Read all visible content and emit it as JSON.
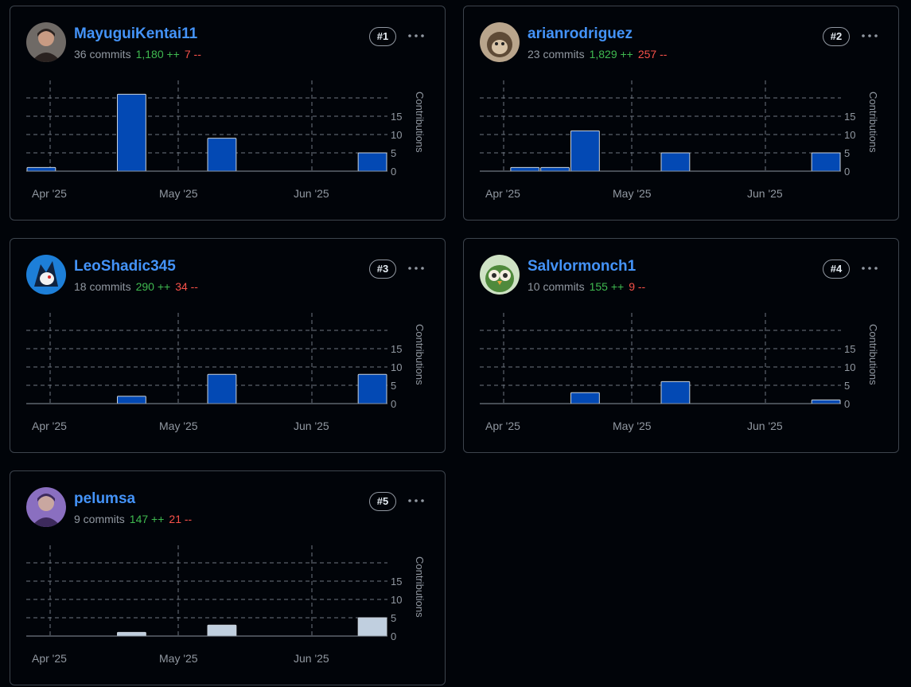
{
  "contributors": [
    {
      "username": "MayuguiKentai11",
      "commits": "36 commits",
      "additions": "1,180 ++",
      "deletions": "7 --",
      "rank": "#1",
      "avatar": {
        "bg": "#6f6a66",
        "fg": "#2a2220",
        "face": "#c89b83",
        "kind": "person"
      },
      "chart_data": {
        "type": "bar",
        "x_tick_labels": [
          "Apr '25",
          "May '25",
          "Jun '25"
        ],
        "y_tick_labels": [
          "0",
          "5",
          "10",
          "15"
        ],
        "ylabel": "Contributions",
        "ylim": [
          0,
          20
        ],
        "bar_color": "#0349b4",
        "values": [
          1,
          0,
          0,
          21,
          0,
          0,
          9,
          0,
          0,
          0,
          0,
          5
        ]
      }
    },
    {
      "username": "arianrodriguez",
      "commits": "23 commits",
      "additions": "1,829 ++",
      "deletions": "257 --",
      "rank": "#2",
      "avatar": {
        "bg": "#b9a58c",
        "fg": "#5e4a36",
        "face": "#d8c4a8",
        "kind": "monkey"
      },
      "chart_data": {
        "type": "bar",
        "x_tick_labels": [
          "Apr '25",
          "May '25",
          "Jun '25"
        ],
        "y_tick_labels": [
          "0",
          "5",
          "10",
          "15"
        ],
        "ylabel": "Contributions",
        "ylim": [
          0,
          20
        ],
        "bar_color": "#0349b4",
        "values": [
          0,
          1,
          1,
          11,
          0,
          0,
          5,
          0,
          0,
          0,
          0,
          5
        ]
      }
    },
    {
      "username": "LeoShadic345",
      "commits": "18 commits",
      "additions": "290 ++",
      "deletions": "34 --",
      "rank": "#3",
      "avatar": {
        "bg": "#1d7fd8",
        "fg": "#10233f",
        "face": "#f2f2f2",
        "kind": "hero"
      },
      "chart_data": {
        "type": "bar",
        "x_tick_labels": [
          "Apr '25",
          "May '25",
          "Jun '25"
        ],
        "y_tick_labels": [
          "0",
          "5",
          "10",
          "15"
        ],
        "ylabel": "Contributions",
        "ylim": [
          0,
          20
        ],
        "bar_color": "#0349b4",
        "values": [
          0,
          0,
          0,
          2,
          0,
          0,
          8,
          0,
          0,
          0,
          0,
          8
        ]
      }
    },
    {
      "username": "Salvlormonch1",
      "commits": "10 commits",
      "additions": "155 ++",
      "deletions": "9 --",
      "rank": "#4",
      "avatar": {
        "bg": "#cfe3c5",
        "fg": "#4f8a3c",
        "face": "#f4efe0",
        "kind": "owl"
      },
      "chart_data": {
        "type": "bar",
        "x_tick_labels": [
          "Apr '25",
          "May '25",
          "Jun '25"
        ],
        "y_tick_labels": [
          "0",
          "5",
          "10",
          "15"
        ],
        "ylabel": "Contributions",
        "ylim": [
          0,
          20
        ],
        "bar_color": "#0349b4",
        "values": [
          0,
          0,
          0,
          3,
          0,
          0,
          6,
          0,
          0,
          0,
          0,
          1
        ]
      }
    },
    {
      "username": "pelumsa",
      "commits": "9 commits",
      "additions": "147 ++",
      "deletions": "21 --",
      "rank": "#5",
      "avatar": {
        "bg": "#8a6fc0",
        "fg": "#3d2a5c",
        "face": "#c9a7a0",
        "kind": "person2"
      },
      "chart_data": {
        "type": "bar",
        "x_tick_labels": [
          "Apr '25",
          "May '25",
          "Jun '25"
        ],
        "y_tick_labels": [
          "0",
          "5",
          "10",
          "15"
        ],
        "ylabel": "Contributions",
        "ylim": [
          0,
          20
        ],
        "bar_color": "#c0cfdf",
        "values": [
          0,
          0,
          0,
          1,
          0,
          0,
          3,
          0,
          0,
          0,
          0,
          5
        ]
      }
    }
  ],
  "menu_icon": "kebab-horizontal-icon"
}
